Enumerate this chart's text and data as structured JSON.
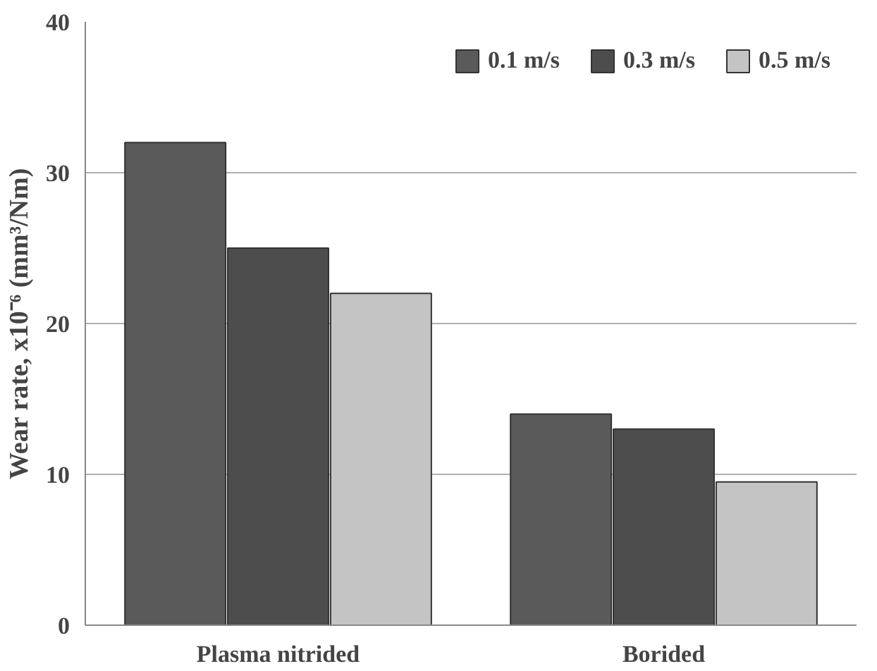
{
  "chart_data": {
    "type": "bar",
    "ylabel": "Wear rate, x10⁻⁶ (mm³/Nm)",
    "categories": [
      "Plasma nitrided",
      "Borided"
    ],
    "series": [
      {
        "name": "0.1 m/s",
        "color": "#5a5a5a",
        "values": [
          32,
          14
        ]
      },
      {
        "name": "0.3 m/s",
        "color": "#4d4d4d",
        "values": [
          25,
          13
        ]
      },
      {
        "name": "0.5 m/s",
        "color": "#c4c4c4",
        "values": [
          22,
          9.5
        ]
      }
    ],
    "ylim": [
      0,
      40
    ],
    "yticks": [
      0,
      10,
      20,
      30,
      40
    ],
    "grid": "y",
    "legend": "top right"
  }
}
